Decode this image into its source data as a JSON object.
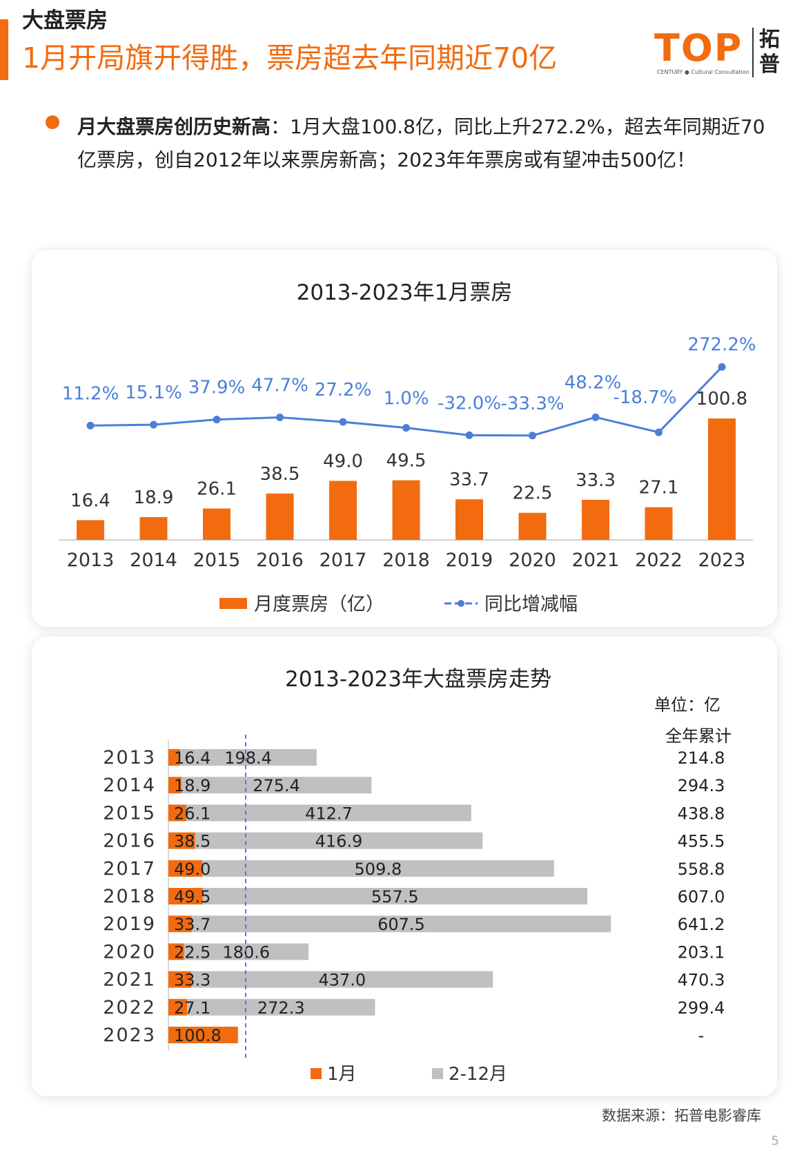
{
  "header": {
    "section_label": "大盘票房",
    "headline": "1月开局旗开得胜，票房超去年同期近70亿",
    "logo_text": "TOP",
    "logo_cn": "拓普",
    "logo_sub": "CENTURY ● Cultural Consultation"
  },
  "bullet": {
    "bold": "月大盘票房创历史新高",
    "text": "：1月大盘100.8亿，同比上升272.2%，超去年同期近70亿票房，创自2012年以来票房新高；2023年年票房或有望冲击500亿！"
  },
  "colors": {
    "accent": "#f26b0f",
    "line": "#4a7fd8",
    "gray": "#c0c0c0"
  },
  "chart_data": [
    {
      "type": "bar",
      "title": "2013-2023年1月票房",
      "categories": [
        "2013",
        "2014",
        "2015",
        "2016",
        "2017",
        "2018",
        "2019",
        "2020",
        "2021",
        "2022",
        "2023"
      ],
      "series": [
        {
          "name": "月度票房（亿）",
          "type": "bar",
          "values": [
            16.4,
            18.9,
            26.1,
            38.5,
            49.0,
            49.5,
            33.7,
            22.5,
            33.3,
            27.1,
            100.8
          ],
          "labels": [
            "16.4",
            "18.9",
            "26.1",
            "38.5",
            "49.0",
            "49.5",
            "33.7",
            "22.5",
            "33.3",
            "27.1",
            "100.8"
          ]
        },
        {
          "name": "同比增减幅",
          "type": "line",
          "values": [
            11.2,
            15.1,
            37.9,
            47.7,
            27.2,
            1.0,
            -32.0,
            -33.3,
            48.2,
            -18.7,
            272.2
          ],
          "labels": [
            "11.2%",
            "15.1%",
            "37.9%",
            "47.7%",
            "27.2%",
            "1.0%",
            "-32.0%",
            "-33.3%",
            "48.2%",
            "-18.7%",
            "272.2%"
          ]
        }
      ],
      "legend": "bottom"
    },
    {
      "type": "bar",
      "orientation": "horizontal",
      "stacked": true,
      "title": "2013-2023年大盘票房走势",
      "unit": "单位：亿",
      "total_header": "全年累计",
      "categories": [
        "2013",
        "2014",
        "2015",
        "2016",
        "2017",
        "2018",
        "2019",
        "2020",
        "2021",
        "2022",
        "2023"
      ],
      "series": [
        {
          "name": "1月",
          "values": [
            16.4,
            18.9,
            26.1,
            38.5,
            49.0,
            49.5,
            33.7,
            22.5,
            33.3,
            27.1,
            100.8
          ],
          "labels": [
            "16.4",
            "18.9",
            "26.1",
            "38.5",
            "49.0",
            "49.5",
            "33.7",
            "22.5",
            "33.3",
            "27.1",
            "100.8"
          ]
        },
        {
          "name": "2-12月",
          "values": [
            198.4,
            275.4,
            412.7,
            416.9,
            509.8,
            557.5,
            607.5,
            180.6,
            437.0,
            272.3,
            0
          ],
          "labels": [
            "198.4",
            "275.4",
            "412.7",
            "416.9",
            "509.8",
            "557.5",
            "607.5",
            "180.6",
            "437.0",
            "272.3",
            ""
          ]
        }
      ],
      "totals": [
        "214.8",
        "294.3",
        "438.8",
        "455.5",
        "558.8",
        "607.0",
        "641.2",
        "203.1",
        "470.3",
        "299.4",
        "-"
      ],
      "legend": "bottom"
    }
  ],
  "footer": {
    "source": "数据来源：拓普电影睿库",
    "page": "5"
  }
}
